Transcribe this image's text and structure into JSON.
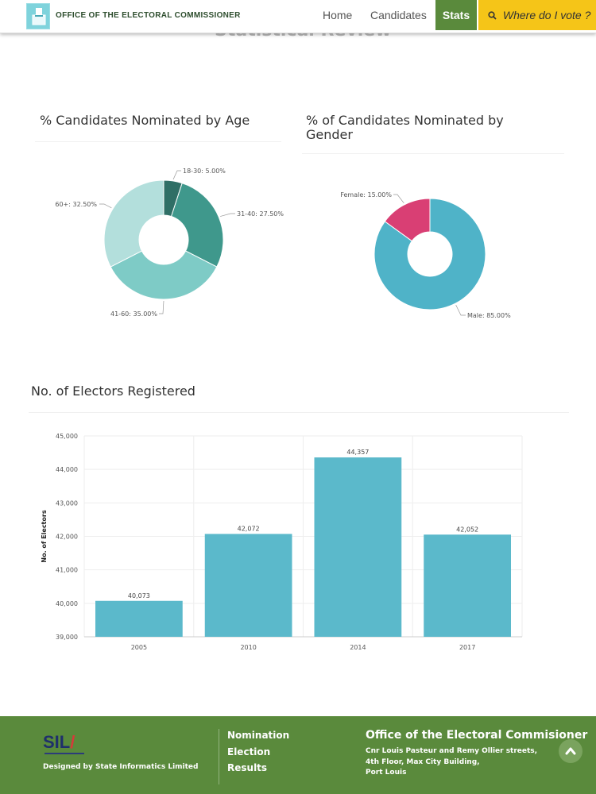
{
  "header": {
    "brand": "OFFICE OF THE ELECTORAL COMMISSIONER",
    "nav": {
      "home": "Home",
      "candidates": "Candidates",
      "stats": "Stats",
      "vote": "Where do I vote ?"
    }
  },
  "page": {
    "title": "Statistical Review"
  },
  "colors": {
    "stats_active": "#5a8a3c",
    "vote_button": "#f5c518",
    "bar": "#5bb9cb",
    "footer": "#5a8a3c"
  },
  "icons": {
    "vote": "search-icon",
    "logo": "ballot-box-icon",
    "back_to_top": "chevron-up-icon"
  },
  "chart_data": [
    {
      "type": "pie",
      "title": "% Candidates Nominated by Age",
      "donut": true,
      "slices": [
        {
          "label": "18-30",
          "value": 5.0,
          "display": "18-30: 5.00%",
          "color": "#2f6f66"
        },
        {
          "label": "31-40",
          "value": 27.5,
          "display": "31-40: 27.50%",
          "color": "#3f988c"
        },
        {
          "label": "41-60",
          "value": 35.0,
          "display": "41-60: 35.00%",
          "color": "#7ecbc6"
        },
        {
          "label": "60+",
          "value": 32.5,
          "display": "60+: 32.50%",
          "color": "#b3dfdc"
        }
      ]
    },
    {
      "type": "pie",
      "title": "% of Candidates Nominated by Gender",
      "donut": true,
      "slices": [
        {
          "label": "Male",
          "value": 85.0,
          "display": "Male: 85.00%",
          "color": "#4fb3c8"
        },
        {
          "label": "Female",
          "value": 15.0,
          "display": "Female: 15.00%",
          "color": "#d93f74"
        }
      ]
    },
    {
      "type": "bar",
      "title": "No. of Electors Registered",
      "ylabel": "No. of Electors",
      "categories": [
        "2005",
        "2010",
        "2014",
        "2017"
      ],
      "values": [
        40073,
        42072,
        44357,
        42052
      ],
      "value_labels": [
        "40,073",
        "42,072",
        "44,357",
        "42,052"
      ],
      "ylim": [
        39000,
        45000
      ],
      "yticks": [
        "39,000",
        "40,000",
        "41,000",
        "42,000",
        "43,000",
        "44,000",
        "45,000"
      ],
      "grid": true
    }
  ],
  "footer": {
    "logo": "SIL",
    "designed_by": "Designed by State Informatics Limited",
    "links": [
      "Nomination",
      "Election",
      "Results"
    ],
    "office_title": "Office of the Electoral Commisioner",
    "address": [
      "Cnr Louis Pasteur and Remy Ollier streets,",
      "4th Floor, Max City Building,",
      "Port Louis"
    ]
  }
}
